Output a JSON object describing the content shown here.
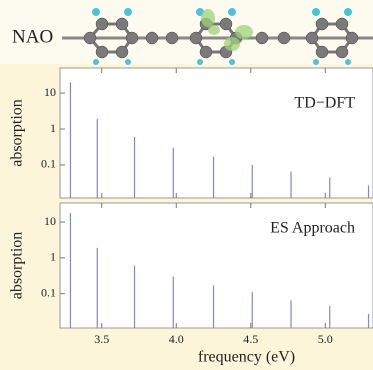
{
  "molecule_label": "NAO",
  "chart_data": [
    {
      "type": "stick",
      "annotation": "TD−DFT",
      "ylabel": "absorption",
      "x": [
        3.29,
        3.47,
        3.72,
        3.98,
        4.25,
        4.51,
        4.77,
        5.03,
        5.29
      ],
      "values": [
        20,
        1.9,
        0.6,
        0.3,
        0.17,
        0.1,
        0.065,
        0.045,
        0.027
      ],
      "color": "#8484d4",
      "log_y": true,
      "xlim": [
        3.22,
        5.32
      ],
      "ylim": [
        0.012,
        50
      ],
      "xticks": [
        3.5,
        {
          "value": 4,
          "label": "4.0"
        },
        4.5,
        {
          "value": 5,
          "label": "5.0"
        }
      ],
      "yticks": [
        0.1,
        1,
        10
      ]
    },
    {
      "type": "stick",
      "annotation": "ES Approach",
      "ylabel": "absorption",
      "xlabel": "frequency (eV)",
      "x": [
        3.29,
        3.47,
        3.72,
        3.98,
        4.25,
        4.51,
        4.77,
        5.03,
        5.29
      ],
      "values": [
        18,
        1.9,
        0.6,
        0.3,
        0.17,
        0.11,
        0.065,
        0.045,
        0.027
      ],
      "color": "#8484d4",
      "log_y": true,
      "xlim": [
        3.22,
        5.32
      ],
      "ylim": [
        0.011,
        34
      ],
      "xticks": [
        3.5,
        {
          "value": 4,
          "label": "4.0"
        },
        4.5,
        {
          "value": 5,
          "label": "5.0"
        }
      ],
      "yticks": [
        0.1,
        1,
        10
      ]
    }
  ]
}
